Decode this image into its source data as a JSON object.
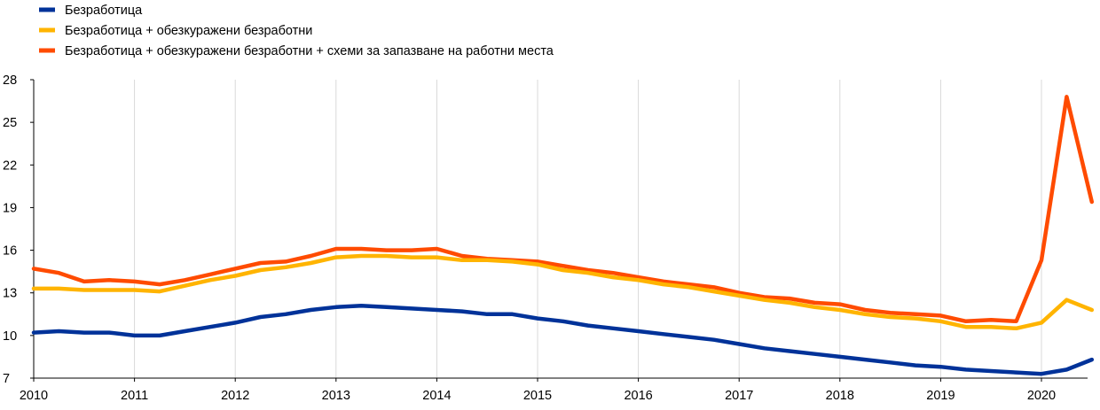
{
  "chart_data": {
    "type": "line",
    "title": "",
    "xlabel": "",
    "ylabel": "",
    "xlim": [
      2010,
      2020.55
    ],
    "ylim": [
      7,
      28
    ],
    "y_ticks": [
      7,
      10,
      13,
      16,
      19,
      22,
      25,
      28
    ],
    "x_ticks": [
      2010,
      2011,
      2012,
      2013,
      2014,
      2015,
      2016,
      2017,
      2018,
      2019,
      2020
    ],
    "grid": "vertical",
    "legend_position": "top-left",
    "x": [
      2010.0,
      2010.25,
      2010.5,
      2010.75,
      2011.0,
      2011.25,
      2011.5,
      2011.75,
      2012.0,
      2012.25,
      2012.5,
      2012.75,
      2013.0,
      2013.25,
      2013.5,
      2013.75,
      2014.0,
      2014.25,
      2014.5,
      2014.75,
      2015.0,
      2015.25,
      2015.5,
      2015.75,
      2016.0,
      2016.25,
      2016.5,
      2016.75,
      2017.0,
      2017.25,
      2017.5,
      2017.75,
      2018.0,
      2018.25,
      2018.5,
      2018.75,
      2019.0,
      2019.25,
      2019.5,
      2019.75,
      2020.0,
      2020.25,
      2020.5
    ],
    "series": [
      {
        "name": "Безработица",
        "color": "#003299",
        "values": [
          10.2,
          10.3,
          10.2,
          10.2,
          10.0,
          10.0,
          10.3,
          10.6,
          10.9,
          11.3,
          11.5,
          11.8,
          12.0,
          12.1,
          12.0,
          11.9,
          11.8,
          11.7,
          11.5,
          11.5,
          11.2,
          11.0,
          10.7,
          10.5,
          10.3,
          10.1,
          9.9,
          9.7,
          9.4,
          9.1,
          8.9,
          8.7,
          8.5,
          8.3,
          8.1,
          7.9,
          7.8,
          7.6,
          7.5,
          7.4,
          7.3,
          7.6,
          8.3
        ]
      },
      {
        "name": "Безработица + обезкуражени безработни",
        "color": "#FFB400",
        "values": [
          13.3,
          13.3,
          13.2,
          13.2,
          13.2,
          13.1,
          13.5,
          13.9,
          14.2,
          14.6,
          14.8,
          15.1,
          15.5,
          15.6,
          15.6,
          15.5,
          15.5,
          15.3,
          15.3,
          15.2,
          15.0,
          14.6,
          14.4,
          14.1,
          13.9,
          13.6,
          13.4,
          13.1,
          12.8,
          12.5,
          12.3,
          12.0,
          11.8,
          11.5,
          11.3,
          11.2,
          11.0,
          10.6,
          10.6,
          10.5,
          10.9,
          12.5,
          11.8
        ]
      },
      {
        "name": "Безработица + обезкуражени безработни + схеми за запазване на работни  места",
        "color": "#FF4B00",
        "values": [
          14.7,
          14.4,
          13.8,
          13.9,
          13.8,
          13.6,
          13.9,
          14.3,
          14.7,
          15.1,
          15.2,
          15.6,
          16.1,
          16.1,
          16.0,
          16.0,
          16.1,
          15.6,
          15.4,
          15.3,
          15.2,
          14.9,
          14.6,
          14.4,
          14.1,
          13.8,
          13.6,
          13.4,
          13.0,
          12.7,
          12.6,
          12.3,
          12.2,
          11.8,
          11.6,
          11.5,
          11.4,
          11.0,
          11.1,
          11.0,
          15.3,
          26.8,
          19.4
        ]
      }
    ]
  }
}
